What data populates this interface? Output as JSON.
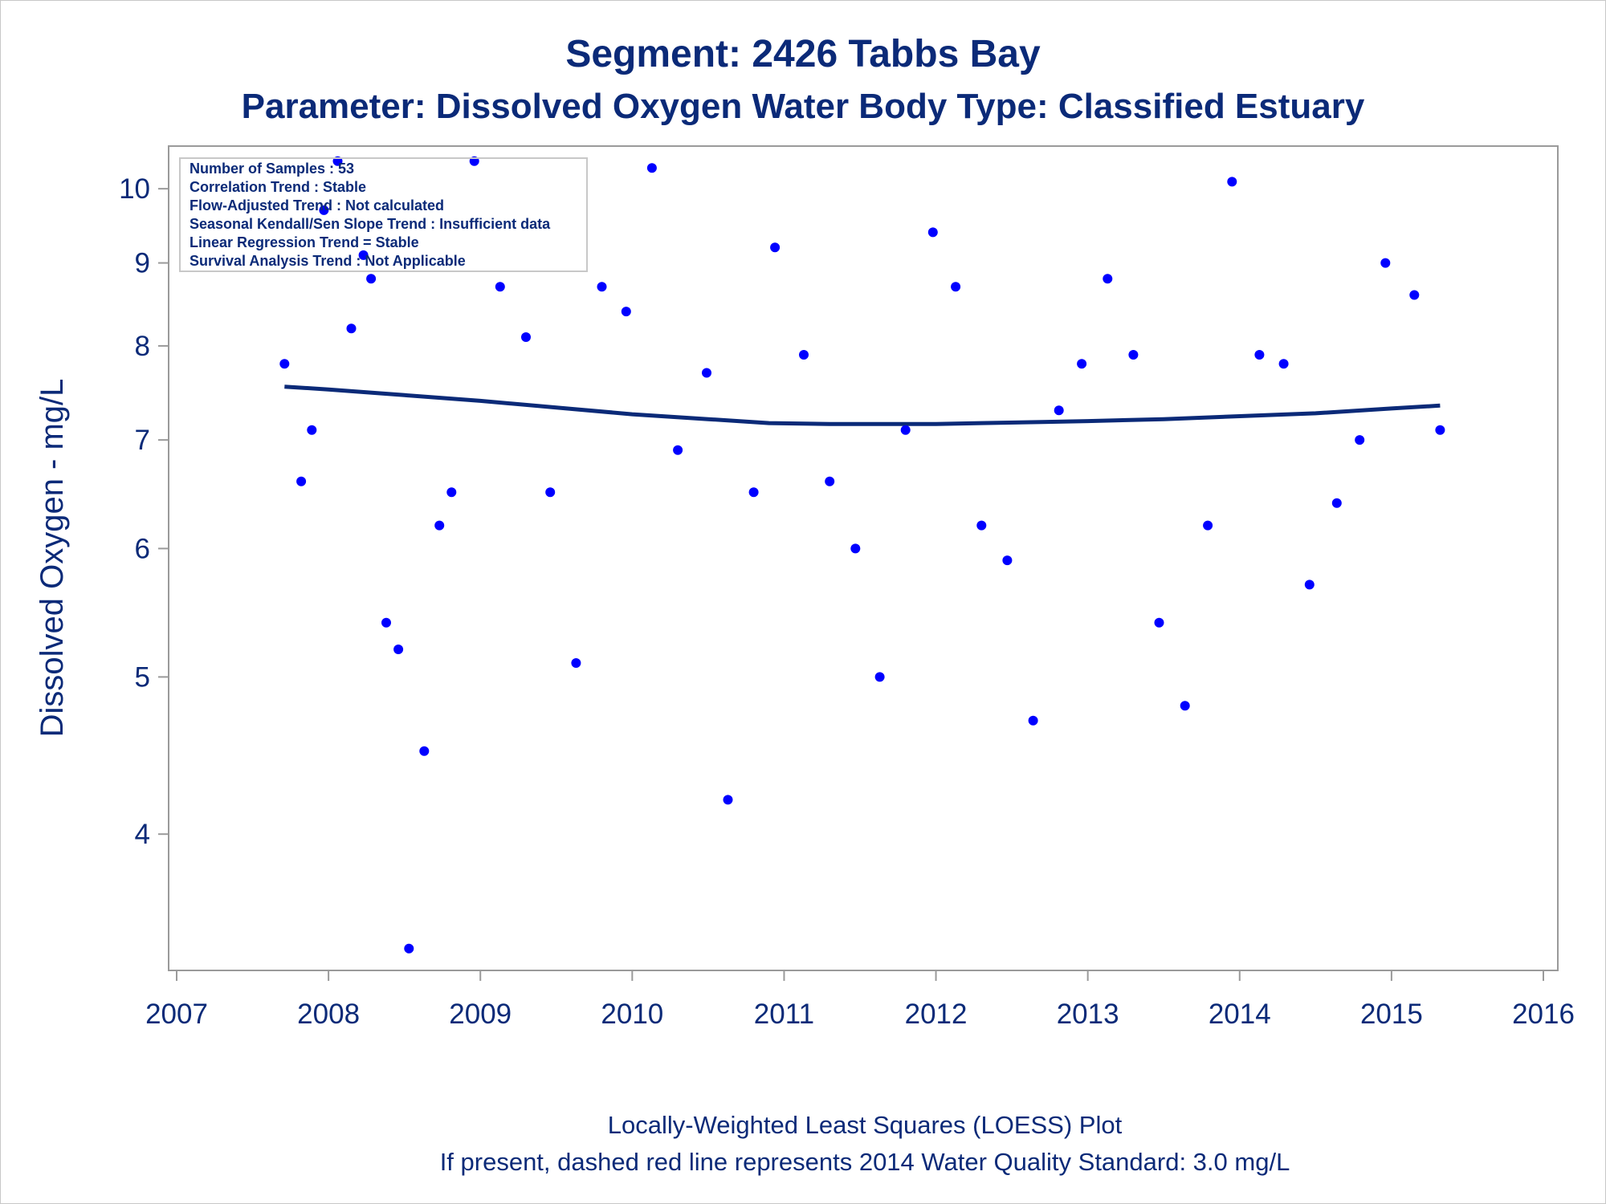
{
  "colors": {
    "text": "#0b2a78",
    "points": "#0000ff",
    "loess_line": "#0b2a78",
    "axis": "#9a9a9a"
  },
  "chart_data": {
    "type": "scatter",
    "title": "Segment: 2426  Tabbs Bay",
    "subtitle": "Parameter: Dissolved Oxygen   Water Body Type: Classified Estuary",
    "xlabel": "",
    "ylabel": "Dissolved Oxygen - mg/L",
    "yscale": "log",
    "xlim": [
      2007,
      2016
    ],
    "ylim": [
      3.3,
      10.6
    ],
    "xticks": [
      "2007",
      "2008",
      "2009",
      "2010",
      "2011",
      "2012",
      "2013",
      "2014",
      "2015",
      "2016"
    ],
    "yticks": [
      4,
      5,
      6,
      7,
      8,
      9,
      10
    ],
    "grid": false,
    "stats_box": [
      "Number of Samples : 53",
      "Correlation Trend : Stable",
      "Flow-Adjusted Trend : Not calculated",
      "Seasonal Kendall/Sen Slope Trend : Insufficient data",
      "Linear Regression Trend = Stable",
      "Survival Analysis Trend : Not Applicable"
    ],
    "footnotes": [
      "Locally-Weighted Least Squares (LOESS) Plot",
      "If present, dashed red line represents 2014 Water Quality Standard: 3.0 mg/L"
    ],
    "points": {
      "x": [
        2007.71,
        2007.82,
        2007.89,
        2007.97,
        2008.06,
        2008.15,
        2008.23,
        2008.28,
        2008.38,
        2008.46,
        2008.53,
        2008.63,
        2008.73,
        2008.81,
        2008.96,
        2009.13,
        2009.3,
        2009.46,
        2009.63,
        2009.8,
        2009.96,
        2010.13,
        2010.3,
        2010.49,
        2010.63,
        2010.8,
        2010.94,
        2011.13,
        2011.3,
        2011.47,
        2011.63,
        2011.8,
        2011.98,
        2012.13,
        2012.3,
        2012.47,
        2012.64,
        2012.81,
        2012.96,
        2013.13,
        2013.3,
        2013.47,
        2013.64,
        2013.79,
        2013.95,
        2014.13,
        2014.29,
        2014.46,
        2014.64,
        2014.79,
        2014.96,
        2015.15,
        2015.32
      ],
      "y": [
        7.8,
        6.6,
        7.1,
        9.7,
        10.4,
        8.2,
        9.1,
        8.8,
        5.4,
        5.2,
        3.4,
        4.5,
        6.2,
        6.5,
        10.4,
        8.7,
        8.1,
        6.5,
        5.1,
        8.7,
        8.4,
        10.3,
        6.9,
        7.7,
        4.2,
        6.5,
        9.2,
        7.9,
        6.6,
        6.0,
        5.0,
        7.1,
        9.4,
        8.7,
        6.2,
        5.9,
        4.7,
        7.3,
        7.8,
        8.8,
        7.9,
        5.4,
        4.8,
        6.2,
        10.1,
        7.9,
        7.8,
        5.7,
        6.4,
        7.0,
        9.0,
        8.6,
        7.1
      ]
    },
    "loess": {
      "x": [
        2007.71,
        2008.0,
        2008.5,
        2009.0,
        2009.5,
        2010.0,
        2010.5,
        2010.9,
        2011.3,
        2011.7,
        2012.0,
        2012.3,
        2012.7,
        2013.0,
        2013.5,
        2014.0,
        2014.5,
        2015.0,
        2015.32
      ],
      "y": [
        7.55,
        7.52,
        7.46,
        7.4,
        7.33,
        7.26,
        7.21,
        7.17,
        7.16,
        7.16,
        7.16,
        7.17,
        7.18,
        7.19,
        7.21,
        7.24,
        7.27,
        7.32,
        7.35
      ]
    }
  }
}
